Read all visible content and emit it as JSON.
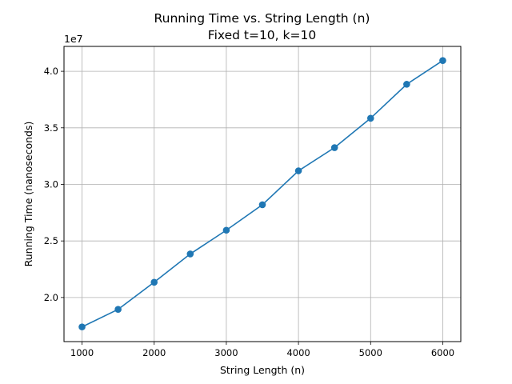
{
  "chart_data": {
    "type": "line",
    "title": "Running Time vs. String Length (n)",
    "subtitle": "Fixed t=10, k=10",
    "xlabel": "String Length (n)",
    "ylabel": "Running Time (nanoseconds)",
    "y_offset_label": "1e7",
    "y_multiplier": 10000000,
    "xlim": [
      750,
      6250
    ],
    "ylim": [
      16100000,
      42200000
    ],
    "x_ticks": [
      1000,
      2000,
      3000,
      4000,
      5000,
      6000
    ],
    "y_ticks": [
      20000000,
      25000000,
      30000000,
      35000000,
      40000000
    ],
    "grid": true,
    "markers": true,
    "series_color": "#1f77b4",
    "series": [
      {
        "x": [
          1000,
          1500,
          2000,
          2500,
          3000,
          3500,
          4000,
          4500,
          5000,
          5500,
          6000
        ],
        "y": [
          17400000,
          18950000,
          21350000,
          23850000,
          25950000,
          28200000,
          31200000,
          33250000,
          35850000,
          38850000,
          40950000
        ]
      }
    ]
  }
}
